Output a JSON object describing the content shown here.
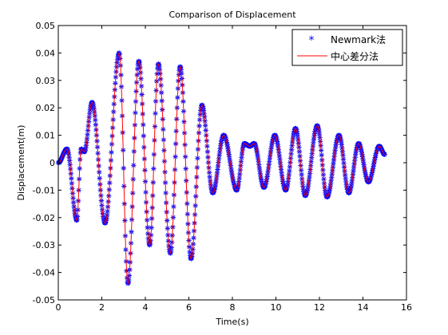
{
  "chart_data": {
    "type": "line",
    "title": "Comparison of Displacement",
    "xlabel": "Time(s)",
    "ylabel": "Displacement(m)",
    "xlim": [
      0,
      16
    ],
    "ylim": [
      -0.05,
      0.05
    ],
    "xticks": [
      0,
      2,
      4,
      6,
      8,
      10,
      12,
      14,
      16
    ],
    "yticks": [
      -0.05,
      -0.04,
      -0.03,
      -0.02,
      -0.01,
      0,
      0.01,
      0.02,
      0.03,
      0.04,
      0.05
    ],
    "xtick_labels": [
      "0",
      "2",
      "4",
      "6",
      "8",
      "10",
      "12",
      "14",
      "16"
    ],
    "ytick_labels": [
      "-0.05",
      "-0.04",
      "-0.03",
      "-0.02",
      "-0.01",
      "0",
      "0.01",
      "0.02",
      "0.03",
      "0.04",
      "0.05"
    ],
    "grid": false,
    "legend": "top-right",
    "x_range": [
      0,
      15
    ],
    "extrema": [
      [
        0.0,
        0.0
      ],
      [
        0.4,
        0.005
      ],
      [
        0.85,
        -0.021
      ],
      [
        1.05,
        0.005
      ],
      [
        1.2,
        0.004
      ],
      [
        1.55,
        0.022
      ],
      [
        2.15,
        -0.022
      ],
      [
        2.8,
        0.04
      ],
      [
        3.2,
        -0.044
      ],
      [
        3.7,
        0.037
      ],
      [
        4.2,
        -0.03
      ],
      [
        4.6,
        0.036
      ],
      [
        5.15,
        -0.033
      ],
      [
        5.6,
        0.035
      ],
      [
        6.1,
        -0.035
      ],
      [
        6.6,
        0.021
      ],
      [
        7.1,
        -0.011
      ],
      [
        7.6,
        0.01
      ],
      [
        8.2,
        -0.01
      ],
      [
        8.55,
        0.007
      ],
      [
        8.8,
        0.006
      ],
      [
        9.0,
        0.007
      ],
      [
        9.45,
        -0.009
      ],
      [
        9.95,
        0.01
      ],
      [
        10.45,
        -0.01
      ],
      [
        10.9,
        0.0125
      ],
      [
        11.35,
        -0.012
      ],
      [
        11.9,
        0.0135
      ],
      [
        12.35,
        -0.0125
      ],
      [
        12.9,
        0.01
      ],
      [
        13.35,
        -0.011
      ],
      [
        13.8,
        0.007
      ],
      [
        14.25,
        -0.007
      ],
      [
        14.75,
        0.006
      ],
      [
        15.0,
        0.003
      ]
    ],
    "series": [
      {
        "name": "Newmark法",
        "marker": "*",
        "color": "#0000ff"
      },
      {
        "name": "中心差分法",
        "line": "solid",
        "color": "#ff0000"
      }
    ]
  }
}
